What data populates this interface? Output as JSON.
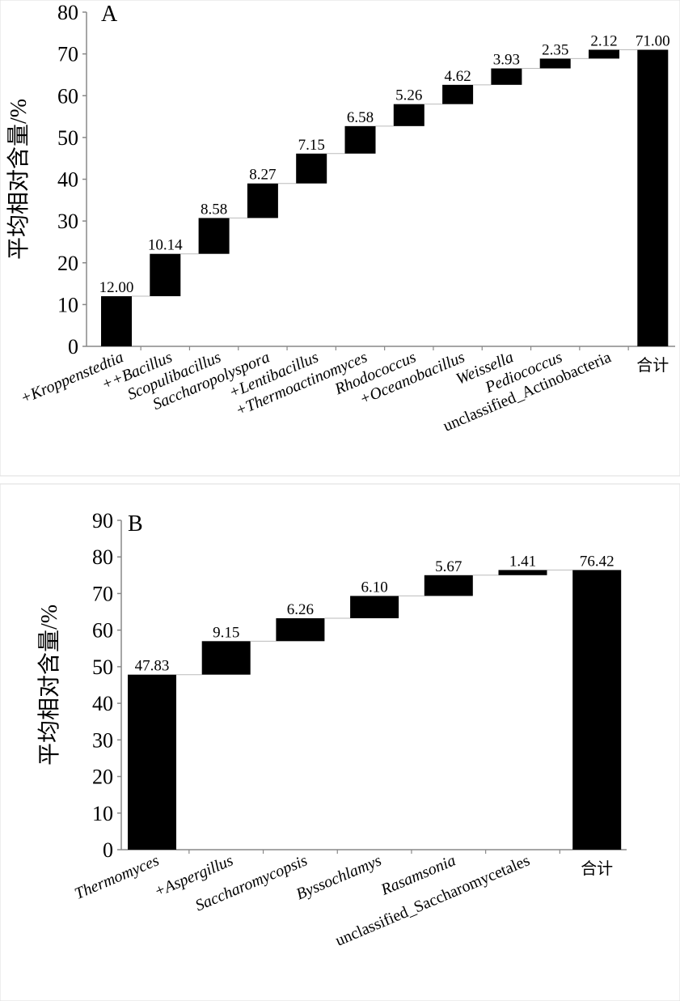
{
  "chart_data": [
    {
      "type": "waterfall",
      "panel_label": "A",
      "ylabel": "平均相对含量/%",
      "ylim": [
        0,
        80
      ],
      "yticks": [
        0,
        10,
        20,
        30,
        40,
        50,
        60,
        70,
        80
      ],
      "categories": [
        "+Kroppenstedtia",
        "++Bacillus",
        "Scopulibacillus",
        "Saccharopolyspora",
        "+Lentibacillus",
        "+Thermoactinomyces",
        "Rhodococcus",
        "+Oceanobacillus",
        "Weissella",
        "Pediococcus",
        "unclassified_Actinobacteria",
        "合计"
      ],
      "italic": [
        true,
        true,
        true,
        true,
        true,
        true,
        true,
        true,
        true,
        true,
        false,
        false
      ],
      "values": [
        12.0,
        10.14,
        8.58,
        8.27,
        7.15,
        6.58,
        5.26,
        4.62,
        3.93,
        2.35,
        2.12,
        71.0
      ],
      "value_labels": [
        "12.00",
        "10.14",
        "8.58",
        "8.27",
        "7.15",
        "6.58",
        "5.26",
        "4.62",
        "3.93",
        "2.35",
        "2.12",
        "71.00"
      ],
      "is_total": [
        false,
        false,
        false,
        false,
        false,
        false,
        false,
        false,
        false,
        false,
        false,
        true
      ],
      "bar_color": "#000000",
      "grid": false
    },
    {
      "type": "waterfall",
      "panel_label": "B",
      "ylabel": "平均相对含量/%",
      "ylim": [
        0,
        90
      ],
      "yticks": [
        0,
        10,
        20,
        30,
        40,
        50,
        60,
        70,
        80,
        90
      ],
      "categories": [
        "Thermomyces",
        "+Aspergillus",
        "Saccharomycopsis",
        "Byssochlamys",
        "Rasamsonia",
        "unclassified_Saccharomycetales",
        "合计"
      ],
      "italic": [
        true,
        true,
        true,
        true,
        true,
        false,
        false
      ],
      "values": [
        47.83,
        9.15,
        6.26,
        6.1,
        5.67,
        1.41,
        76.42
      ],
      "value_labels": [
        "47.83",
        "9.15",
        "6.26",
        "6.10",
        "5.67",
        "1.41",
        "76.42"
      ],
      "is_total": [
        false,
        false,
        false,
        false,
        false,
        false,
        true
      ],
      "bar_color": "#000000",
      "grid": false
    }
  ]
}
